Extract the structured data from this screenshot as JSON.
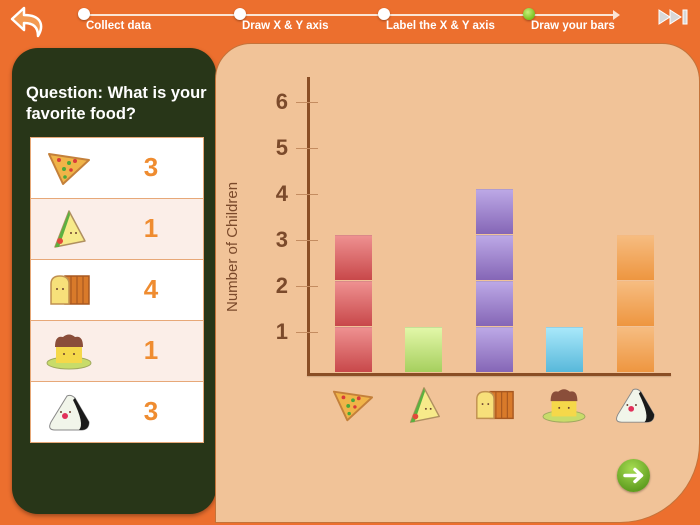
{
  "nav": {
    "back_icon": "back-arrow-icon",
    "skip_icon": "skip-forward-icon",
    "next_icon": "next-arrow-icon",
    "steps": [
      {
        "label": "Collect data",
        "x": 84,
        "active": false
      },
      {
        "label": "Draw X & Y axis",
        "x": 240,
        "active": false
      },
      {
        "label": "Label the X & Y axis",
        "x": 384,
        "active": false
      },
      {
        "label": "Draw your bars",
        "x": 529,
        "active": true
      }
    ]
  },
  "question": {
    "text": "Question: What is your favorite food?"
  },
  "tally": [
    {
      "food": "pizza",
      "icon": "pizza-icon",
      "count": "3"
    },
    {
      "food": "sandwich",
      "icon": "sandwich-icon",
      "count": "1"
    },
    {
      "food": "bread",
      "icon": "bread-icon",
      "count": "4"
    },
    {
      "food": "pudding",
      "icon": "pudding-icon",
      "count": "1"
    },
    {
      "food": "rice ball",
      "icon": "rice-ball-icon",
      "count": "3"
    }
  ],
  "chart_data": {
    "type": "bar",
    "title": "What is your favorite food?",
    "xlabel": "",
    "ylabel": "Number of Children",
    "categories": [
      "Pizza",
      "Sandwich",
      "Bread",
      "Pudding",
      "Rice ball"
    ],
    "values": [
      3,
      1,
      4,
      1,
      3
    ],
    "colors": [
      "#d9585a",
      "#bde27c",
      "#9a7fca",
      "#7fcbe6",
      "#f4a660"
    ],
    "yticks": [
      "1",
      "2",
      "3",
      "4",
      "5",
      "6"
    ],
    "ylim": [
      0,
      6
    ],
    "grid": false,
    "legend": "none (food icons under x-axis)"
  }
}
